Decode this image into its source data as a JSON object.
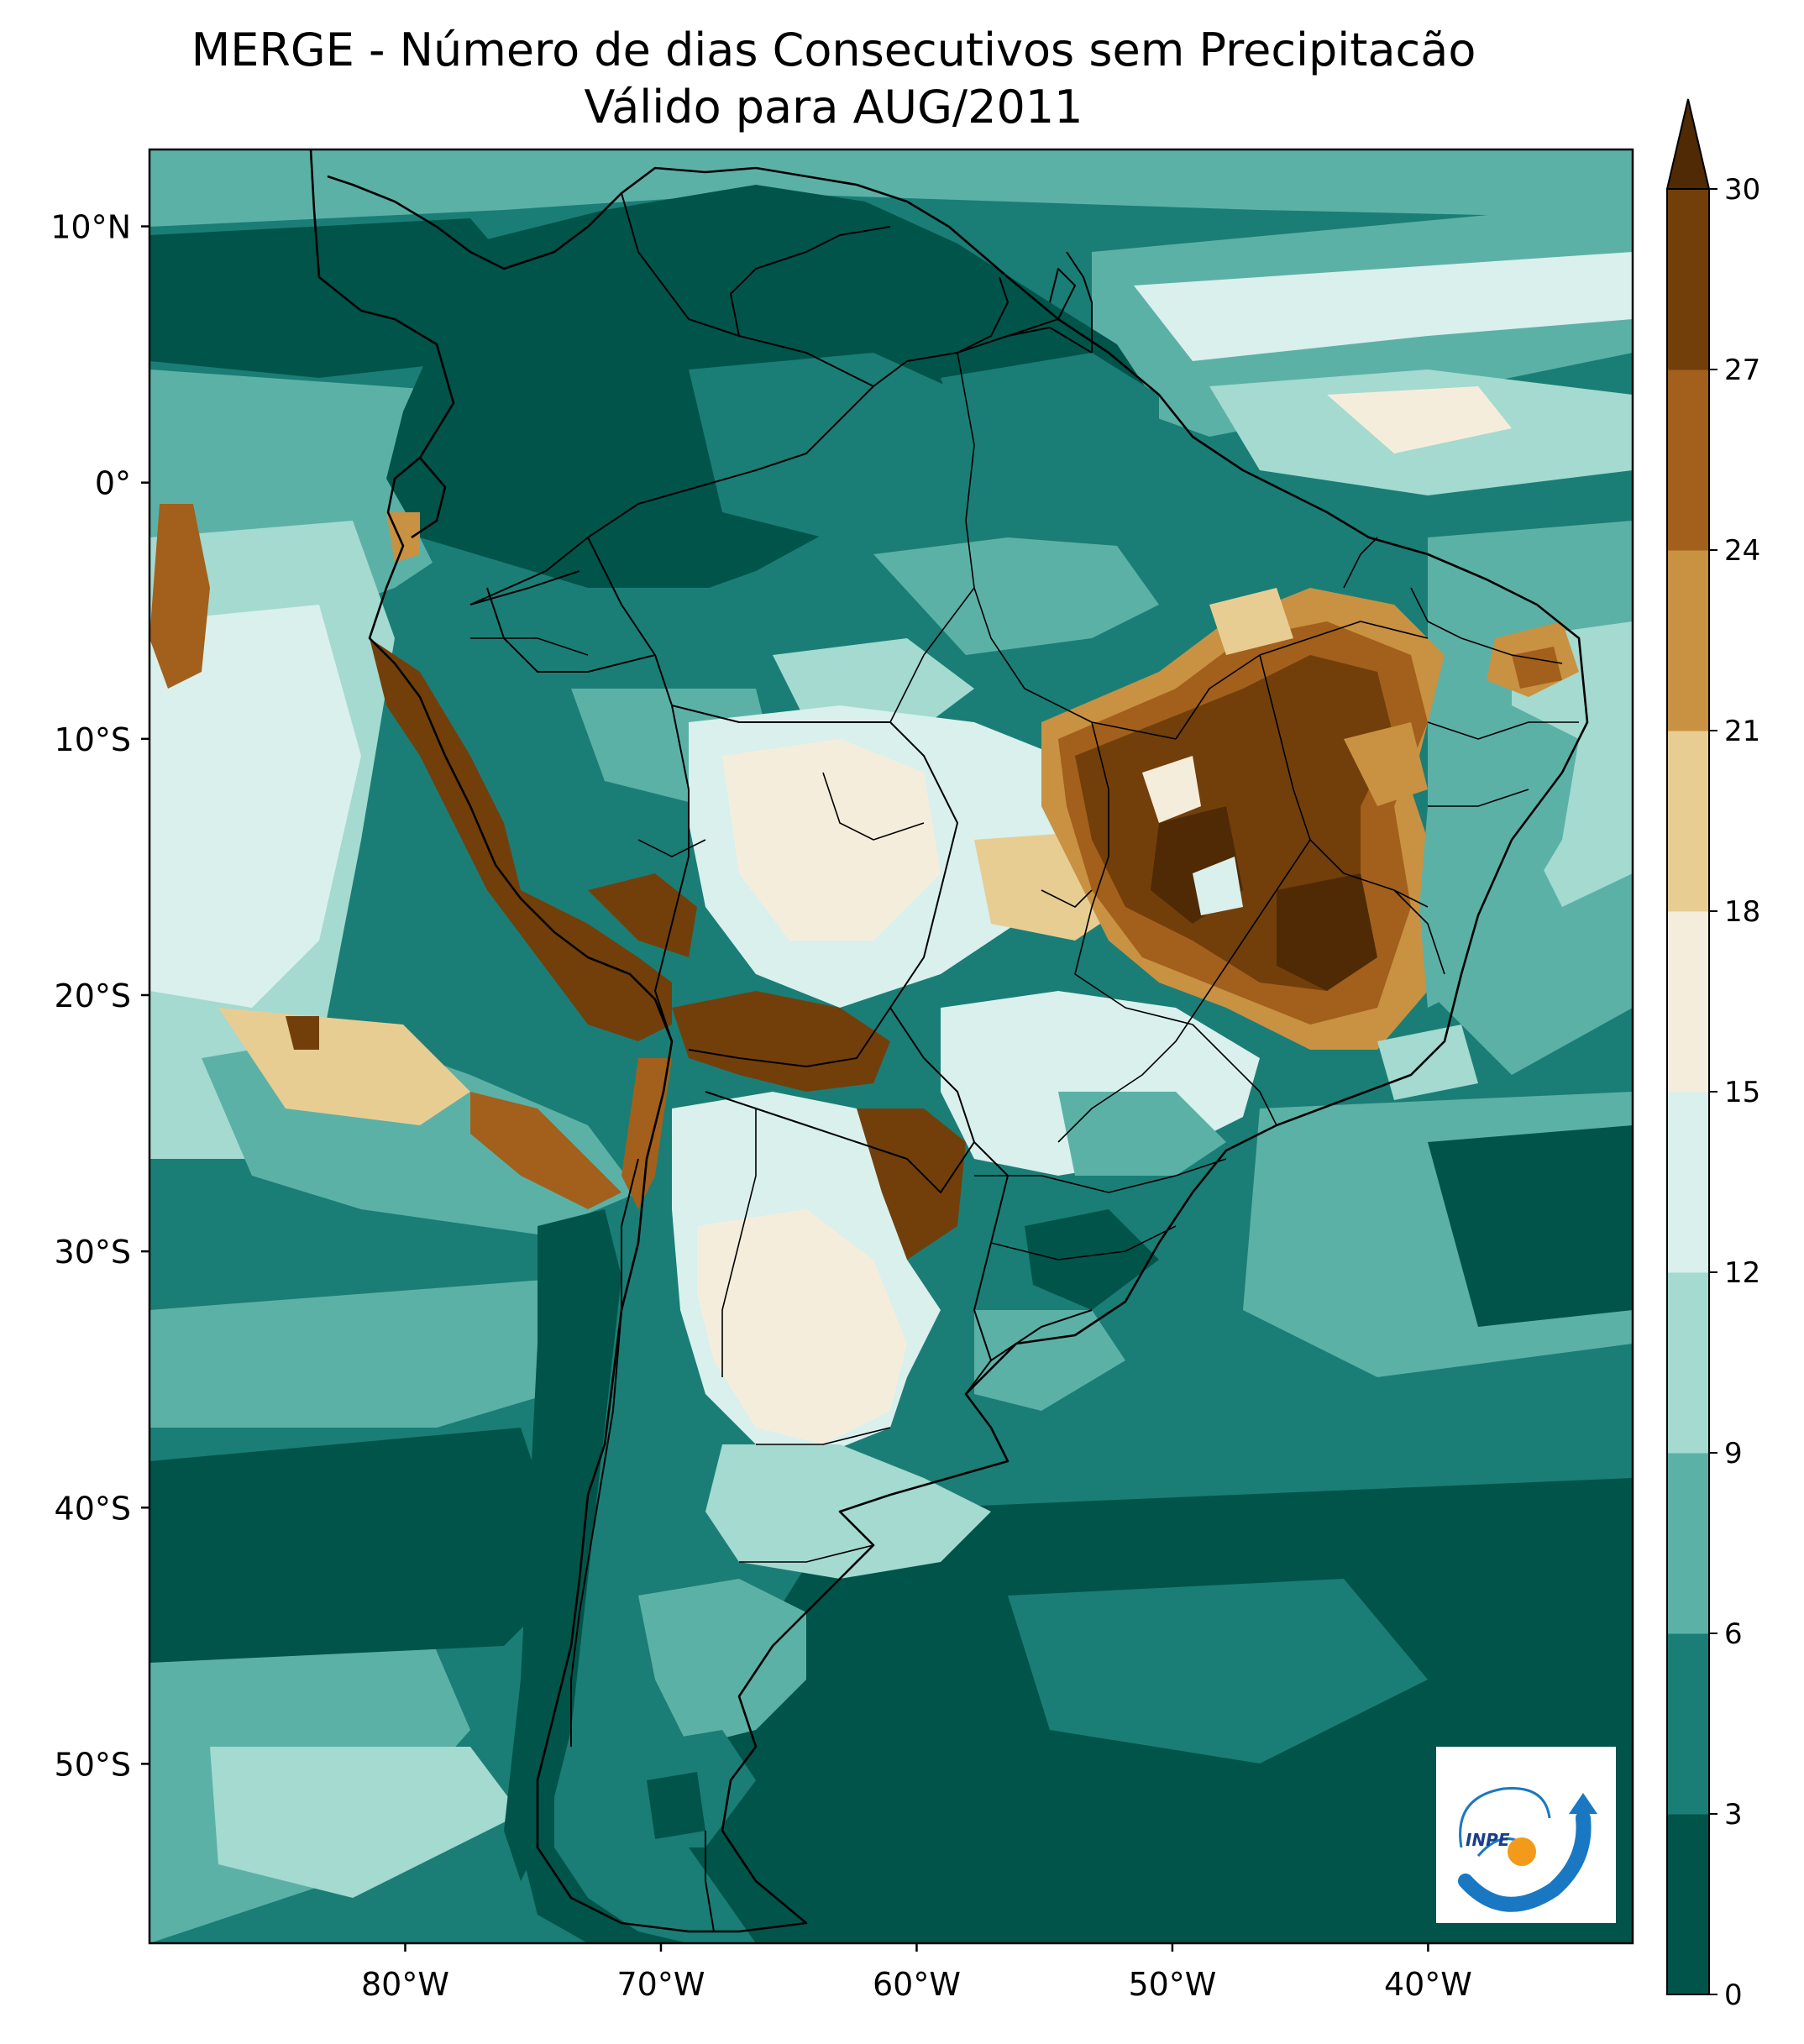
{
  "title": {
    "line1": "MERGE - Número de dias Consecutivos sem Precipitacão",
    "line2": "Válido para AUG/2011"
  },
  "map": {
    "extent": {
      "lon_min": -90,
      "lon_max": -32,
      "lat_min": -57,
      "lat_max": 13
    },
    "lat_ticks": [
      {
        "lat": 10,
        "label": "10°N"
      },
      {
        "lat": 0,
        "label": "0°"
      },
      {
        "lat": -10,
        "label": "10°S"
      },
      {
        "lat": -20,
        "label": "20°S"
      },
      {
        "lat": -30,
        "label": "30°S"
      },
      {
        "lat": -40,
        "label": "40°S"
      },
      {
        "lat": -50,
        "label": "50°S"
      }
    ],
    "lon_ticks": [
      {
        "lon": -80,
        "label": "80°W"
      },
      {
        "lon": -70,
        "label": "70°W"
      },
      {
        "lon": -60,
        "label": "60°W"
      },
      {
        "lon": -50,
        "label": "50°W"
      },
      {
        "lon": -40,
        "label": "40°W"
      }
    ]
  },
  "colorbar": {
    "ticks": [
      "0",
      "3",
      "6",
      "9",
      "12",
      "15",
      "18",
      "21",
      "24",
      "27",
      "30"
    ],
    "colors": [
      "#01544a",
      "#1a7e76",
      "#5cb1a7",
      "#a4dad0",
      "#d9f0ed",
      "#f5eddc",
      "#e8cd92",
      "#c99142",
      "#a2601c",
      "#723f0b"
    ],
    "extend_color": "#4f2a05",
    "extend": "max"
  },
  "logo": {
    "text": "INPE"
  }
}
